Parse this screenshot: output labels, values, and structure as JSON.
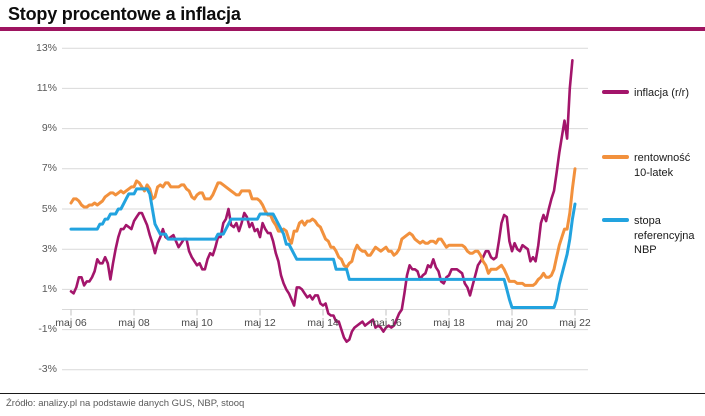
{
  "header": {
    "title": "Stopy procentowe a inflacja"
  },
  "footer": {
    "source": "Źródło: analizy.pl na podstawie danych GUS, NBP, stooq"
  },
  "colors": {
    "accent_rule": "#9e1460",
    "grid": "#d9d9d9",
    "tick": "#c0c0c0",
    "axis_text": "#595959",
    "footer_rule": "#1a1a1a"
  },
  "chart_data": {
    "type": "line",
    "title": "Stopy procentowe a inflacja",
    "xlabel": "",
    "ylabel": "",
    "x_start": "maj 2006",
    "x_end": "maj 2022",
    "points_frequency": "monthly",
    "x_tick_labels": [
      "maj 06",
      "maj 08",
      "maj 10",
      "maj 12",
      "maj 14",
      "maj 16",
      "maj 18",
      "maj 20",
      "maj 22"
    ],
    "y_ticks": [
      13,
      11,
      9,
      7,
      5,
      3,
      1,
      -1,
      -3
    ],
    "y_tick_labels": [
      "13%",
      "11%",
      "9%",
      "7%",
      "5%",
      "3%",
      "1%",
      "-1%",
      "-3%"
    ],
    "ylim": [
      -3,
      13
    ],
    "grid": "horizontal",
    "legend_position": "right",
    "series": [
      {
        "name": "inflacja (r/r)",
        "color": "#a3156b",
        "line_width": 2.6,
        "start_month_offset": 0,
        "values": [
          0.9,
          0.8,
          1.1,
          1.6,
          1.6,
          1.2,
          1.4,
          1.4,
          1.6,
          1.9,
          2.5,
          2.3,
          2.3,
          2.6,
          2.3,
          1.5,
          2.3,
          3.0,
          3.6,
          4.0,
          4.0,
          4.2,
          4.1,
          4.0,
          4.4,
          4.6,
          4.8,
          4.8,
          4.5,
          4.2,
          3.7,
          3.3,
          2.8,
          3.3,
          3.6,
          4.0,
          3.6,
          3.5,
          3.6,
          3.7,
          3.4,
          3.1,
          3.3,
          3.5,
          3.5,
          2.9,
          2.6,
          2.4,
          2.2,
          2.3,
          2.0,
          2.0,
          2.5,
          2.8,
          2.7,
          3.1,
          3.6,
          3.6,
          4.3,
          4.5,
          5.0,
          4.2,
          4.1,
          4.3,
          3.9,
          4.3,
          4.8,
          4.6,
          4.1,
          4.3,
          3.9,
          4.0,
          3.6,
          4.3,
          4.0,
          3.8,
          3.8,
          3.4,
          2.8,
          2.4,
          1.7,
          1.3,
          1.0,
          0.8,
          0.5,
          0.2,
          1.1,
          1.1,
          1.0,
          0.8,
          0.6,
          0.7,
          0.5,
          0.7,
          0.7,
          0.3,
          0.2,
          0.3,
          -0.2,
          -0.3,
          -0.3,
          -0.6,
          -0.6,
          -1.0,
          -1.4,
          -1.6,
          -1.5,
          -1.1,
          -0.9,
          -0.8,
          -0.7,
          -0.6,
          -0.8,
          -0.7,
          -0.6,
          -0.5,
          -0.9,
          -0.8,
          -0.9,
          -1.1,
          -0.9,
          -0.8,
          -0.9,
          -0.8,
          -0.5,
          -0.2,
          0.0,
          0.8,
          1.7,
          2.2,
          2.0,
          2.0,
          1.9,
          1.5,
          1.7,
          1.8,
          2.2,
          2.1,
          2.5,
          2.1,
          1.9,
          1.4,
          1.3,
          1.6,
          1.7,
          2.0,
          2.0,
          2.0,
          1.9,
          1.8,
          1.3,
          1.1,
          0.7,
          1.2,
          1.7,
          2.2,
          2.4,
          2.6,
          2.9,
          2.9,
          2.6,
          2.5,
          2.6,
          3.4,
          4.3,
          4.7,
          4.6,
          3.4,
          2.9,
          3.3,
          3.0,
          2.9,
          3.2,
          3.1,
          3.0,
          2.4,
          2.6,
          2.4,
          3.2,
          4.3,
          4.7,
          4.4,
          5.0,
          5.5,
          5.9,
          6.8,
          7.8,
          8.6,
          9.4,
          8.5,
          11.0,
          12.4
        ]
      },
      {
        "name": "rentowność 10-latek",
        "color": "#f2913d",
        "line_width": 3,
        "start_month_offset": 0,
        "values": [
          5.3,
          5.5,
          5.5,
          5.4,
          5.2,
          5.1,
          5.1,
          5.2,
          5.2,
          5.3,
          5.2,
          5.3,
          5.4,
          5.6,
          5.7,
          5.8,
          5.8,
          5.7,
          5.8,
          5.9,
          5.8,
          5.9,
          6.0,
          6.1,
          6.1,
          6.4,
          6.3,
          6.1,
          5.9,
          6.2,
          6.0,
          5.5,
          5.6,
          6.1,
          6.2,
          6.1,
          6.3,
          6.3,
          6.1,
          6.1,
          6.1,
          6.1,
          6.2,
          6.2,
          6.0,
          5.9,
          5.6,
          5.5,
          5.7,
          5.8,
          5.8,
          5.5,
          5.5,
          5.5,
          5.7,
          6.0,
          6.3,
          6.3,
          6.2,
          6.1,
          6.0,
          5.9,
          5.8,
          5.7,
          5.7,
          5.9,
          5.9,
          5.9,
          5.9,
          5.5,
          5.5,
          5.5,
          5.4,
          5.2,
          4.9,
          4.7,
          4.7,
          4.4,
          4.2,
          3.9,
          3.9,
          4.0,
          3.9,
          3.5,
          3.3,
          3.9,
          3.9,
          4.3,
          4.4,
          4.2,
          4.4,
          4.4,
          4.5,
          4.4,
          4.2,
          4.1,
          3.8,
          3.5,
          3.4,
          3.1,
          3.1,
          2.9,
          2.6,
          2.5,
          2.2,
          2.1,
          2.3,
          2.4,
          2.9,
          3.2,
          3.0,
          2.9,
          2.9,
          2.7,
          2.7,
          2.9,
          3.1,
          3.0,
          2.9,
          3.0,
          3.1,
          2.9,
          2.9,
          2.7,
          2.8,
          3.0,
          3.5,
          3.6,
          3.7,
          3.8,
          3.7,
          3.5,
          3.4,
          3.3,
          3.4,
          3.3,
          3.3,
          3.4,
          3.4,
          3.3,
          3.5,
          3.5,
          3.3,
          3.1,
          3.2,
          3.2,
          3.2,
          3.2,
          3.2,
          3.2,
          3.1,
          2.9,
          2.8,
          2.8,
          2.9,
          2.9,
          2.7,
          2.4,
          2.2,
          1.8,
          2.0,
          2.0,
          2.0,
          2.1,
          2.2,
          2.0,
          1.7,
          1.4,
          1.4,
          1.4,
          1.3,
          1.3,
          1.3,
          1.2,
          1.2,
          1.2,
          1.2,
          1.3,
          1.5,
          1.6,
          1.8,
          1.6,
          1.6,
          1.7,
          2.0,
          2.6,
          3.2,
          3.6,
          4.0,
          4.0,
          4.8,
          6.0,
          7.0
        ]
      },
      {
        "name": "stopa referencyjna NBP",
        "color": "#22a3df",
        "line_width": 3,
        "start_month_offset": 0,
        "values": [
          4.0,
          4.0,
          4.0,
          4.0,
          4.0,
          4.0,
          4.0,
          4.0,
          4.0,
          4.0,
          4.0,
          4.25,
          4.25,
          4.5,
          4.5,
          4.75,
          4.75,
          4.75,
          5.0,
          5.0,
          5.25,
          5.5,
          5.75,
          5.75,
          5.75,
          6.0,
          6.0,
          6.0,
          6.0,
          6.0,
          5.75,
          5.0,
          4.25,
          4.0,
          3.75,
          3.75,
          3.75,
          3.5,
          3.5,
          3.5,
          3.5,
          3.5,
          3.5,
          3.5,
          3.5,
          3.5,
          3.5,
          3.5,
          3.5,
          3.5,
          3.5,
          3.5,
          3.5,
          3.5,
          3.5,
          3.5,
          3.75,
          3.75,
          3.75,
          4.0,
          4.25,
          4.5,
          4.5,
          4.5,
          4.5,
          4.5,
          4.5,
          4.5,
          4.5,
          4.5,
          4.5,
          4.5,
          4.75,
          4.75,
          4.75,
          4.75,
          4.75,
          4.75,
          4.5,
          4.25,
          4.0,
          3.75,
          3.25,
          3.25,
          3.0,
          2.75,
          2.5,
          2.5,
          2.5,
          2.5,
          2.5,
          2.5,
          2.5,
          2.5,
          2.5,
          2.5,
          2.5,
          2.5,
          2.5,
          2.5,
          2.5,
          2.0,
          2.0,
          2.0,
          2.0,
          2.0,
          1.5,
          1.5,
          1.5,
          1.5,
          1.5,
          1.5,
          1.5,
          1.5,
          1.5,
          1.5,
          1.5,
          1.5,
          1.5,
          1.5,
          1.5,
          1.5,
          1.5,
          1.5,
          1.5,
          1.5,
          1.5,
          1.5,
          1.5,
          1.5,
          1.5,
          1.5,
          1.5,
          1.5,
          1.5,
          1.5,
          1.5,
          1.5,
          1.5,
          1.5,
          1.5,
          1.5,
          1.5,
          1.5,
          1.5,
          1.5,
          1.5,
          1.5,
          1.5,
          1.5,
          1.5,
          1.5,
          1.5,
          1.5,
          1.5,
          1.5,
          1.5,
          1.5,
          1.5,
          1.5,
          1.5,
          1.5,
          1.5,
          1.5,
          1.5,
          1.5,
          1.0,
          0.5,
          0.1,
          0.1,
          0.1,
          0.1,
          0.1,
          0.1,
          0.1,
          0.1,
          0.1,
          0.1,
          0.1,
          0.1,
          0.1,
          0.1,
          0.1,
          0.1,
          0.1,
          0.5,
          1.25,
          1.75,
          2.25,
          2.75,
          3.5,
          4.5,
          5.25
        ]
      }
    ]
  }
}
